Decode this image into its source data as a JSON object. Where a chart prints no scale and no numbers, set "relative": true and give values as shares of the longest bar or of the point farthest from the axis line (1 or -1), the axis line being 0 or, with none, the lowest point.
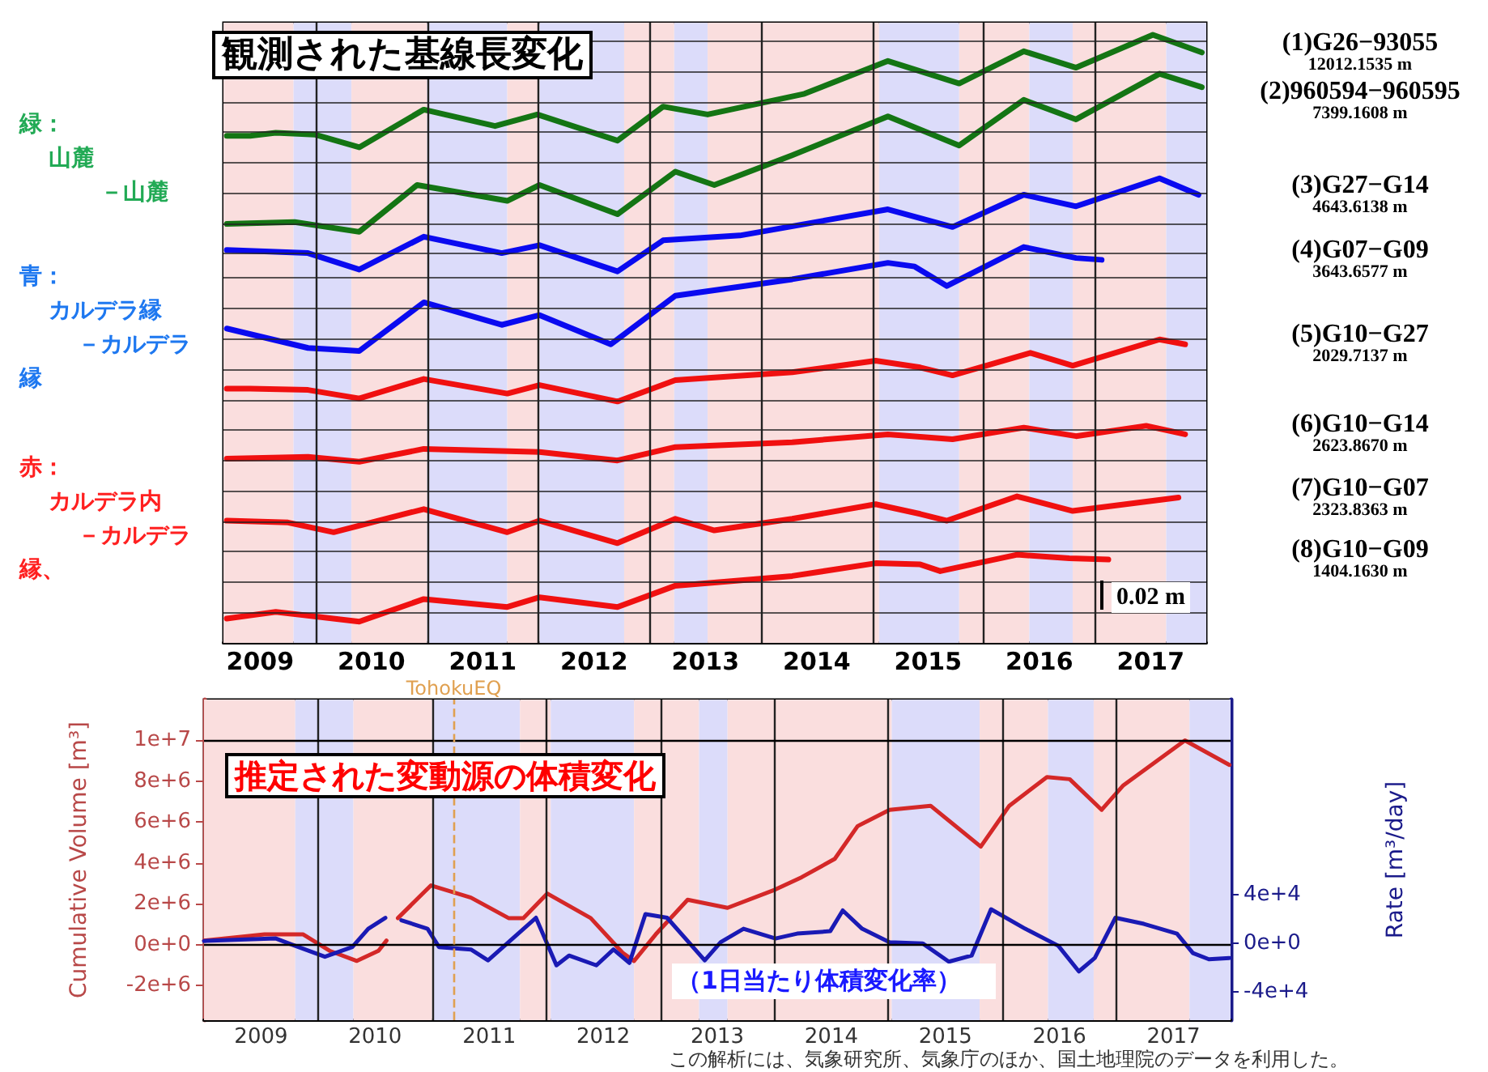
{
  "chart_data": [
    {
      "type": "line",
      "title": "観測された基線長変化",
      "relative": true,
      "grid": true,
      "xlim": [
        2009.17,
        2018.0
      ],
      "xticks": [
        {
          "value": 2009.5,
          "label": "2009"
        },
        {
          "value": 2010,
          "label": null
        },
        {
          "value": 2010.5,
          "label": "2010"
        },
        {
          "value": 2011,
          "label": null
        },
        {
          "value": 2011.5,
          "label": "2011"
        },
        {
          "value": 2012,
          "label": null
        },
        {
          "value": 2012.5,
          "label": "2012"
        },
        {
          "value": 2013,
          "label": null
        },
        {
          "value": 2013.5,
          "label": "2013"
        },
        {
          "value": 2014,
          "label": null
        },
        {
          "value": 2014.5,
          "label": "2014"
        },
        {
          "value": 2015,
          "label": null
        },
        {
          "value": 2015.5,
          "label": "2015"
        },
        {
          "value": 2016,
          "label": null
        },
        {
          "value": 2016.5,
          "label": "2016"
        },
        {
          "value": 2017,
          "label": null
        },
        {
          "value": 2017.5,
          "label": "2017"
        }
      ],
      "series": [
        {
          "name": "(1)G26−93055\n12012.1535 m",
          "color": "#147514",
          "x": [
            2009.2,
            2009.41,
            2009.64,
            2009.99,
            2010.39,
            2010.97,
            2011.61,
            2011.99,
            2012.71,
            2013.12,
            2013.52,
            2014.39,
            2015.14,
            2015.78,
            2016.36,
            2016.83,
            2017.52,
            2017.96
          ],
          "values": [
            0.834,
            0.834,
            0.839,
            0.836,
            0.815,
            0.877,
            0.85,
            0.869,
            0.826,
            0.882,
            0.869,
            0.903,
            0.957,
            0.92,
            0.973,
            0.946,
            1.0,
            0.971
          ]
        },
        {
          "name": "(2)960594−960595\n7399.1608 m",
          "color": "#147514",
          "x": [
            2009.2,
            2009.81,
            2010.39,
            2010.91,
            2011.72,
            2012.01,
            2012.71,
            2013.23,
            2013.58,
            2014.28,
            2015.14,
            2015.78,
            2016.36,
            2016.83,
            2017.58,
            2017.96
          ],
          "values": [
            0.689,
            0.692,
            0.676,
            0.753,
            0.727,
            0.753,
            0.705,
            0.775,
            0.753,
            0.802,
            0.866,
            0.818,
            0.893,
            0.861,
            0.936,
            0.914
          ]
        },
        {
          "name": "(3)G27−G14\n4643.6138 m",
          "color": "#0a0af0",
          "x": [
            2009.2,
            2009.93,
            2010.39,
            2010.97,
            2011.67,
            2012.01,
            2012.71,
            2013.12,
            2013.81,
            2015.14,
            2015.72,
            2016.36,
            2016.83,
            2017.58,
            2017.93
          ],
          "values": [
            0.646,
            0.641,
            0.614,
            0.668,
            0.641,
            0.654,
            0.611,
            0.662,
            0.67,
            0.713,
            0.684,
            0.737,
            0.718,
            0.764,
            0.737
          ]
        },
        {
          "name": "(4)G07−G09\n3643.6577 m",
          "color": "#0a0af0",
          "x": [
            2009.2,
            2009.93,
            2010.39,
            2010.97,
            2011.67,
            2012.01,
            2012.65,
            2013.23,
            2014.28,
            2015.14,
            2015.38,
            2015.67,
            2016.36,
            2016.83,
            2017.06
          ],
          "values": [
            0.517,
            0.485,
            0.48,
            0.56,
            0.523,
            0.539,
            0.491,
            0.571,
            0.598,
            0.625,
            0.619,
            0.587,
            0.651,
            0.633,
            0.63
          ]
        },
        {
          "name": "(5)G10−G27\n2029.7137 m",
          "color": "#f01010",
          "x": [
            2009.2,
            2009.41,
            2009.93,
            2010.39,
            2010.97,
            2011.72,
            2012.01,
            2012.71,
            2013.23,
            2014.28,
            2015.03,
            2015.43,
            2015.72,
            2016.42,
            2016.8,
            2017.58,
            2017.81
          ],
          "values": [
            0.418,
            0.418,
            0.416,
            0.402,
            0.434,
            0.41,
            0.424,
            0.397,
            0.432,
            0.445,
            0.464,
            0.453,
            0.44,
            0.477,
            0.456,
            0.499,
            0.491
          ]
        },
        {
          "name": "(6)G10−G14\n2623.8670 m",
          "color": "#f01010",
          "x": [
            2009.2,
            2009.93,
            2010.39,
            2010.97,
            2012.01,
            2012.71,
            2013.23,
            2014.28,
            2015.14,
            2015.72,
            2016.36,
            2016.83,
            2017.46,
            2017.81
          ],
          "values": [
            0.303,
            0.306,
            0.298,
            0.319,
            0.314,
            0.3,
            0.322,
            0.33,
            0.343,
            0.335,
            0.354,
            0.34,
            0.357,
            0.343
          ]
        },
        {
          "name": "(7)G10−G07\n2323.8363 m",
          "color": "#f01010",
          "x": [
            2009.2,
            2009.75,
            2010.16,
            2010.97,
            2011.72,
            2012.01,
            2012.71,
            2013.23,
            2013.58,
            2014.28,
            2015.03,
            2015.43,
            2015.67,
            2016.3,
            2016.8,
            2017.75
          ],
          "values": [
            0.201,
            0.198,
            0.182,
            0.22,
            0.182,
            0.201,
            0.164,
            0.204,
            0.185,
            0.204,
            0.228,
            0.212,
            0.201,
            0.241,
            0.217,
            0.239
          ]
        },
        {
          "name": "(8)G10−G09\n1404.1630 m",
          "color": "#f01010",
          "x": [
            2009.2,
            2009.64,
            2010.39,
            2010.97,
            2011.72,
            2012.01,
            2012.71,
            2013.23,
            2014.28,
            2015.03,
            2015.43,
            2015.61,
            2016.3,
            2016.77,
            2017.12
          ],
          "values": [
            0.04,
            0.051,
            0.035,
            0.072,
            0.059,
            0.075,
            0.059,
            0.094,
            0.11,
            0.131,
            0.129,
            0.118,
            0.145,
            0.139,
            0.137
          ]
        }
      ],
      "bands": [
        {
          "axis": "x",
          "from": 2009.17,
          "to": 2009.8,
          "color": "#fadede"
        },
        {
          "axis": "x",
          "from": 2009.8,
          "to": 2010.32,
          "color": "#dcdcfa"
        },
        {
          "axis": "x",
          "from": 2010.32,
          "to": 2011.0,
          "color": "#fadede"
        },
        {
          "axis": "x",
          "from": 2011.0,
          "to": 2011.72,
          "color": "#dcdcfa"
        },
        {
          "axis": "x",
          "from": 2011.72,
          "to": 2012.01,
          "color": "#fadede"
        },
        {
          "axis": "x",
          "from": 2012.01,
          "to": 2012.77,
          "color": "#dcdcfa"
        },
        {
          "axis": "x",
          "from": 2012.77,
          "to": 2013.22,
          "color": "#fadede"
        },
        {
          "axis": "x",
          "from": 2013.22,
          "to": 2013.52,
          "color": "#dcdcfa"
        },
        {
          "axis": "x",
          "from": 2013.52,
          "to": 2015.06,
          "color": "#fadede"
        },
        {
          "axis": "x",
          "from": 2015.06,
          "to": 2015.78,
          "color": "#dcdcfa"
        },
        {
          "axis": "x",
          "from": 2015.78,
          "to": 2016.41,
          "color": "#fadede"
        },
        {
          "axis": "x",
          "from": 2016.41,
          "to": 2016.8,
          "color": "#dcdcfa"
        },
        {
          "axis": "x",
          "from": 2016.8,
          "to": 2017.64,
          "color": "#fadede"
        },
        {
          "axis": "x",
          "from": 2017.64,
          "to": 2018.0,
          "color": "#dcdcfa"
        }
      ],
      "annotations": [
        "緑：",
        "山麓",
        "－山麓",
        "青：",
        "カルデラ縁",
        "－カルデラ",
        "縁",
        "赤：",
        "カルデラ内",
        "－カルデラ",
        "縁、",
        "0.02 m"
      ]
    },
    {
      "type": "line",
      "title": "推定された変動源の体積変化",
      "ylabel": "Cumulative Volume [m³]",
      "y2label": "Rate [m³/day]",
      "grid": "x",
      "xlim": [
        2009.0,
        2018.0
      ],
      "xticks": [
        {
          "value": 2009.5,
          "label": "2009"
        },
        {
          "value": 2010,
          "label": null
        },
        {
          "value": 2010.5,
          "label": "2010"
        },
        {
          "value": 2011,
          "label": null
        },
        {
          "value": 2011.5,
          "label": "2011"
        },
        {
          "value": 2012,
          "label": null
        },
        {
          "value": 2012.5,
          "label": "2012"
        },
        {
          "value": 2013,
          "label": null
        },
        {
          "value": 2013.5,
          "label": "2013"
        },
        {
          "value": 2014,
          "label": null
        },
        {
          "value": 2014.5,
          "label": "2014"
        },
        {
          "value": 2015,
          "label": null
        },
        {
          "value": 2015.5,
          "label": "2015"
        },
        {
          "value": 2016,
          "label": null
        },
        {
          "value": 2016.5,
          "label": "2016"
        },
        {
          "value": 2017,
          "label": null
        },
        {
          "value": 2017.5,
          "label": "2017"
        }
      ],
      "ylim": [
        -3700000,
        12000000
      ],
      "yticks": [
        {
          "value": -2000000,
          "label": "-2e+6"
        },
        {
          "value": 0,
          "label": "0e+0"
        },
        {
          "value": 2000000,
          "label": "2e+6"
        },
        {
          "value": 4000000,
          "label": "4e+6"
        },
        {
          "value": 6000000,
          "label": "6e+6"
        },
        {
          "value": 8000000,
          "label": "8e+6"
        },
        {
          "value": 10000000,
          "label": "1e+7"
        }
      ],
      "y2lim": [
        -63000,
        200000
      ],
      "y2ticks": [
        {
          "value": -40000,
          "label": "-4e+4"
        },
        {
          "value": 0,
          "label": "0e+0"
        },
        {
          "value": 40000,
          "label": "4e+4"
        }
      ],
      "series": [
        {
          "color": "#d42828",
          "x": [
            2009.0,
            2009.53,
            2009.87,
            2010.1,
            2010.34,
            2010.53,
            2010.6,
            2010.65,
            2010.7,
            2010.99,
            2011.34,
            2011.67,
            2011.8,
            2012.01,
            2012.39,
            2012.67,
            2012.77,
            2012.96,
            2013.24,
            2013.59,
            2014.01,
            2014.24,
            2014.53,
            2014.73,
            2015.01,
            2015.37,
            2015.81,
            2016.06,
            2016.39,
            2016.59,
            2016.87,
            2017.06,
            2017.6,
            2017.99
          ],
          "values": [
            200000,
            500000,
            500000,
            -300000,
            -800000,
            -300000,
            200000,
            null,
            1300000,
            2900000,
            2300000,
            1300000,
            1300000,
            2500000,
            1300000,
            -400000,
            -800000,
            500000,
            2200000,
            1800000,
            2700000,
            3300000,
            4200000,
            5800000,
            6600000,
            6800000,
            4800000,
            6800000,
            8200000,
            8100000,
            6600000,
            7800000,
            10000000,
            8800000
          ]
        },
        {
          "color": "#1a1ab4",
          "axis": "y2",
          "x": [
            2009.0,
            2009.63,
            2009.77,
            2010.06,
            2010.3,
            2010.44,
            2010.59,
            2010.66,
            2010.73,
            2010.96,
            2011.06,
            2011.34,
            2011.49,
            2011.67,
            2011.91,
            2012.09,
            2012.2,
            2012.44,
            2012.59,
            2012.73,
            2012.87,
            2013.06,
            2013.39,
            2013.53,
            2013.73,
            2014.01,
            2014.2,
            2014.49,
            2014.6,
            2014.77,
            2015.01,
            2015.3,
            2015.53,
            2015.73,
            2015.9,
            2016.2,
            2016.49,
            2016.67,
            2016.81,
            2016.99,
            2017.24,
            2017.53,
            2017.67,
            2017.81,
            2017.99
          ],
          "values": [
            2000,
            4000,
            -1000,
            -11000,
            -3000,
            12000,
            21000,
            null,
            19000,
            12000,
            -3000,
            -5000,
            -14000,
            1000,
            21000,
            -18000,
            -10000,
            -18000,
            -5000,
            -16000,
            24000,
            21000,
            -14000,
            1000,
            12000,
            4000,
            8000,
            10000,
            27000,
            12000,
            1000,
            0,
            -15000,
            -10000,
            28000,
            12000,
            -2000,
            -23000,
            -12000,
            21000,
            16000,
            8000,
            -8000,
            -13000,
            -12000
          ]
        }
      ],
      "ref_lines": [
        {
          "axis": "y",
          "value": 0,
          "color": "#000000"
        },
        {
          "axis": "y",
          "value": 10000000,
          "color": "#000000"
        },
        {
          "axis": "x",
          "value": 2011.19,
          "label": "TohokuEQ",
          "color": "#e0a050",
          "line_style": "dashed"
        }
      ],
      "bands": [
        {
          "axis": "x",
          "from": 2009.0,
          "to": 2009.8,
          "color": "#fadede"
        },
        {
          "axis": "x",
          "from": 2009.8,
          "to": 2010.31,
          "color": "#dcdcfa"
        },
        {
          "axis": "x",
          "from": 2010.31,
          "to": 2011.0,
          "color": "#fadede"
        },
        {
          "axis": "x",
          "from": 2011.0,
          "to": 2011.77,
          "color": "#dcdcfa"
        },
        {
          "axis": "x",
          "from": 2011.77,
          "to": 2012.04,
          "color": "#fadede"
        },
        {
          "axis": "x",
          "from": 2012.04,
          "to": 2012.77,
          "color": "#dcdcfa"
        },
        {
          "axis": "x",
          "from": 2012.77,
          "to": 2013.34,
          "color": "#fadede"
        },
        {
          "axis": "x",
          "from": 2013.34,
          "to": 2013.59,
          "color": "#dcdcfa"
        },
        {
          "axis": "x",
          "from": 2013.59,
          "to": 2015.03,
          "color": "#fadede"
        },
        {
          "axis": "x",
          "from": 2015.03,
          "to": 2015.8,
          "color": "#dcdcfa"
        },
        {
          "axis": "x",
          "from": 2015.8,
          "to": 2016.4,
          "color": "#fadede"
        },
        {
          "axis": "x",
          "from": 2016.4,
          "to": 2016.8,
          "color": "#dcdcfa"
        },
        {
          "axis": "x",
          "from": 2016.8,
          "to": 2017.64,
          "color": "#fadede"
        },
        {
          "axis": "x",
          "from": 2017.64,
          "to": 2018.0,
          "color": "#dcdcfa"
        }
      ],
      "annotations": [
        "（1日当たり体積変化率）",
        "この解析には、気象研究所、気象庁のほか、国土地理院のデータを利用した。"
      ]
    }
  ]
}
